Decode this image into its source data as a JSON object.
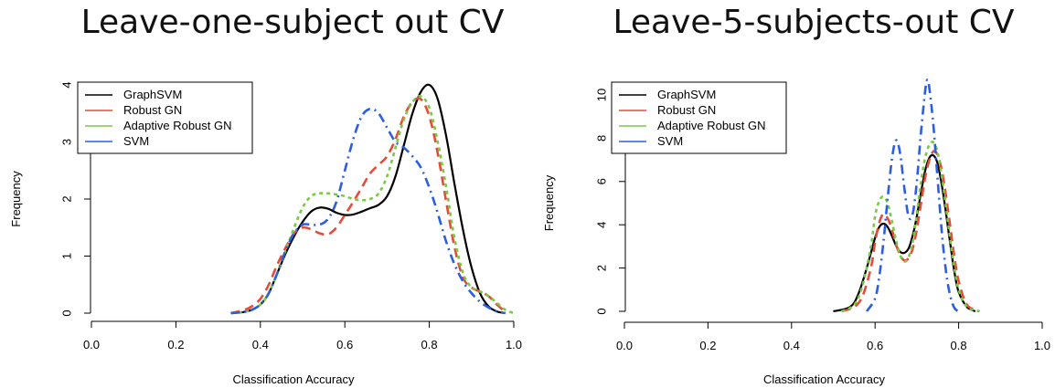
{
  "chart_data": [
    {
      "type": "line",
      "title": "Leave-one-subject out CV",
      "xlabel": "Classification Accuracy",
      "ylabel": "Frequency",
      "xlim": [
        0.0,
        1.0
      ],
      "ylim": [
        0,
        4
      ],
      "xticks": [
        "0.0",
        "0.2",
        "0.4",
        "0.6",
        "0.8",
        "1.0"
      ],
      "yticks": [
        "0",
        "1",
        "2",
        "3",
        "4"
      ],
      "legend_position": "top-left",
      "series": [
        {
          "name": "GraphSVM",
          "color": "#000000",
          "dash": "solid",
          "x": [
            0.33,
            0.36,
            0.38,
            0.4,
            0.42,
            0.44,
            0.46,
            0.48,
            0.5,
            0.52,
            0.54,
            0.56,
            0.58,
            0.6,
            0.62,
            0.64,
            0.66,
            0.68,
            0.7,
            0.72,
            0.74,
            0.76,
            0.78,
            0.8,
            0.82,
            0.84,
            0.86,
            0.88,
            0.9,
            0.92,
            0.94,
            0.96,
            0.98
          ],
          "y": [
            0.0,
            0.02,
            0.06,
            0.15,
            0.35,
            0.7,
            1.05,
            1.35,
            1.6,
            1.78,
            1.85,
            1.83,
            1.76,
            1.72,
            1.73,
            1.78,
            1.84,
            1.9,
            2.05,
            2.4,
            2.95,
            3.5,
            3.88,
            4.0,
            3.75,
            3.1,
            2.25,
            1.45,
            0.8,
            0.35,
            0.12,
            0.03,
            0.0
          ]
        },
        {
          "name": "Robust GN",
          "color": "#e84a3a",
          "dash": "dashed",
          "x": [
            0.33,
            0.36,
            0.38,
            0.4,
            0.42,
            0.44,
            0.46,
            0.48,
            0.5,
            0.52,
            0.54,
            0.56,
            0.58,
            0.6,
            0.62,
            0.64,
            0.66,
            0.68,
            0.7,
            0.72,
            0.74,
            0.76,
            0.78,
            0.8,
            0.82,
            0.84,
            0.86,
            0.88,
            0.9,
            0.92,
            0.94,
            0.96,
            0.98
          ],
          "y": [
            0.0,
            0.05,
            0.12,
            0.25,
            0.5,
            0.85,
            1.15,
            1.4,
            1.5,
            1.47,
            1.4,
            1.38,
            1.5,
            1.72,
            1.95,
            2.2,
            2.45,
            2.6,
            2.75,
            3.05,
            3.45,
            3.7,
            3.75,
            3.45,
            2.8,
            1.95,
            1.15,
            0.62,
            0.45,
            0.38,
            0.3,
            0.15,
            0.02
          ]
        },
        {
          "name": "Adaptive Robust GN",
          "color": "#7ac943",
          "dash": "dotted",
          "x": [
            0.33,
            0.36,
            0.38,
            0.4,
            0.42,
            0.44,
            0.46,
            0.48,
            0.5,
            0.52,
            0.54,
            0.56,
            0.58,
            0.6,
            0.62,
            0.64,
            0.66,
            0.68,
            0.7,
            0.72,
            0.74,
            0.76,
            0.78,
            0.8,
            0.82,
            0.84,
            0.86,
            0.88,
            0.9,
            0.92,
            0.94,
            0.96,
            0.98,
            1.0
          ],
          "y": [
            0.0,
            0.02,
            0.06,
            0.15,
            0.35,
            0.7,
            1.1,
            1.5,
            1.85,
            2.05,
            2.1,
            2.1,
            2.08,
            2.05,
            2.0,
            1.98,
            2.0,
            2.1,
            2.4,
            2.9,
            3.4,
            3.7,
            3.8,
            3.6,
            3.0,
            2.2,
            1.3,
            0.7,
            0.45,
            0.38,
            0.3,
            0.18,
            0.06,
            0.0
          ]
        },
        {
          "name": "SVM",
          "color": "#2b5fe0",
          "dash": "dashdot",
          "x": [
            0.33,
            0.36,
            0.38,
            0.4,
            0.42,
            0.44,
            0.46,
            0.48,
            0.5,
            0.52,
            0.54,
            0.56,
            0.58,
            0.6,
            0.62,
            0.64,
            0.66,
            0.68,
            0.7,
            0.72,
            0.74,
            0.76,
            0.78,
            0.8,
            0.82,
            0.84,
            0.86,
            0.88,
            0.9,
            0.92,
            0.94,
            0.96,
            0.98
          ],
          "y": [
            0.0,
            0.02,
            0.06,
            0.15,
            0.35,
            0.7,
            1.1,
            1.4,
            1.55,
            1.55,
            1.55,
            1.65,
            1.95,
            2.5,
            3.05,
            3.45,
            3.58,
            3.5,
            3.25,
            3.0,
            2.9,
            2.75,
            2.55,
            2.2,
            1.75,
            1.25,
            0.85,
            0.55,
            0.35,
            0.2,
            0.1,
            0.03,
            0.0
          ]
        }
      ]
    },
    {
      "type": "line",
      "title": "Leave-5-subjects-out CV",
      "xlabel": "Classification Accuracy",
      "ylabel": "Frequency",
      "xlim": [
        0.0,
        1.0
      ],
      "ylim": [
        0,
        10
      ],
      "xticks": [
        "0.0",
        "0.2",
        "0.4",
        "0.6",
        "0.8",
        "1.0"
      ],
      "yticks": [
        "0",
        "2",
        "4",
        "6",
        "8",
        "10"
      ],
      "legend_position": "top-left",
      "series": [
        {
          "name": "GraphSVM",
          "color": "#000000",
          "dash": "solid",
          "x": [
            0.5,
            0.54,
            0.56,
            0.58,
            0.6,
            0.61,
            0.62,
            0.63,
            0.64,
            0.65,
            0.66,
            0.67,
            0.68,
            0.69,
            0.7,
            0.71,
            0.72,
            0.73,
            0.74,
            0.75,
            0.76,
            0.77,
            0.78,
            0.79,
            0.8,
            0.82,
            0.84
          ],
          "y": [
            0.0,
            0.2,
            0.8,
            2.0,
            3.4,
            3.9,
            4.05,
            3.9,
            3.5,
            3.05,
            2.75,
            2.7,
            2.9,
            3.5,
            4.4,
            5.5,
            6.5,
            7.1,
            7.2,
            6.8,
            5.8,
            4.5,
            3.1,
            1.8,
            0.9,
            0.2,
            0.0
          ]
        },
        {
          "name": "Robust GN",
          "color": "#e84a3a",
          "dash": "dashed",
          "x": [
            0.52,
            0.55,
            0.57,
            0.59,
            0.6,
            0.61,
            0.62,
            0.63,
            0.64,
            0.65,
            0.66,
            0.67,
            0.68,
            0.69,
            0.7,
            0.71,
            0.72,
            0.73,
            0.74,
            0.75,
            0.76,
            0.77,
            0.78,
            0.79,
            0.8,
            0.82,
            0.85
          ],
          "y": [
            0.0,
            0.2,
            0.7,
            2.0,
            3.2,
            4.1,
            4.5,
            4.3,
            3.8,
            3.1,
            2.6,
            2.35,
            2.45,
            2.9,
            3.8,
            5.0,
            6.2,
            7.0,
            7.4,
            7.2,
            6.5,
            5.3,
            3.9,
            2.5,
            1.4,
            0.3,
            0.0
          ]
        },
        {
          "name": "Adaptive Robust GN",
          "color": "#7ac943",
          "dash": "dotted",
          "x": [
            0.52,
            0.55,
            0.57,
            0.59,
            0.6,
            0.61,
            0.62,
            0.63,
            0.64,
            0.65,
            0.66,
            0.67,
            0.68,
            0.69,
            0.7,
            0.71,
            0.72,
            0.73,
            0.74,
            0.75,
            0.76,
            0.77,
            0.78,
            0.79,
            0.8,
            0.82,
            0.85
          ],
          "y": [
            0.0,
            0.3,
            1.2,
            3.0,
            4.4,
            5.1,
            5.3,
            5.0,
            4.2,
            3.3,
            2.6,
            2.3,
            2.5,
            3.2,
            4.5,
            6.0,
            7.1,
            7.7,
            7.8,
            7.3,
            6.2,
            4.8,
            3.3,
            2.0,
            1.0,
            0.2,
            0.0
          ]
        },
        {
          "name": "SVM",
          "color": "#2b5fe0",
          "dash": "dashdot",
          "x": [
            0.58,
            0.6,
            0.61,
            0.62,
            0.63,
            0.64,
            0.65,
            0.66,
            0.67,
            0.68,
            0.69,
            0.7,
            0.71,
            0.72,
            0.725,
            0.73,
            0.74,
            0.75,
            0.76,
            0.77,
            0.78,
            0.79,
            0.8
          ],
          "y": [
            0.0,
            0.6,
            1.6,
            3.2,
            5.2,
            7.0,
            7.9,
            7.3,
            5.7,
            4.4,
            4.5,
            6.0,
            8.3,
            10.2,
            10.7,
            10.3,
            8.5,
            6.0,
            3.6,
            1.8,
            0.7,
            0.15,
            0.0
          ]
        }
      ]
    }
  ]
}
